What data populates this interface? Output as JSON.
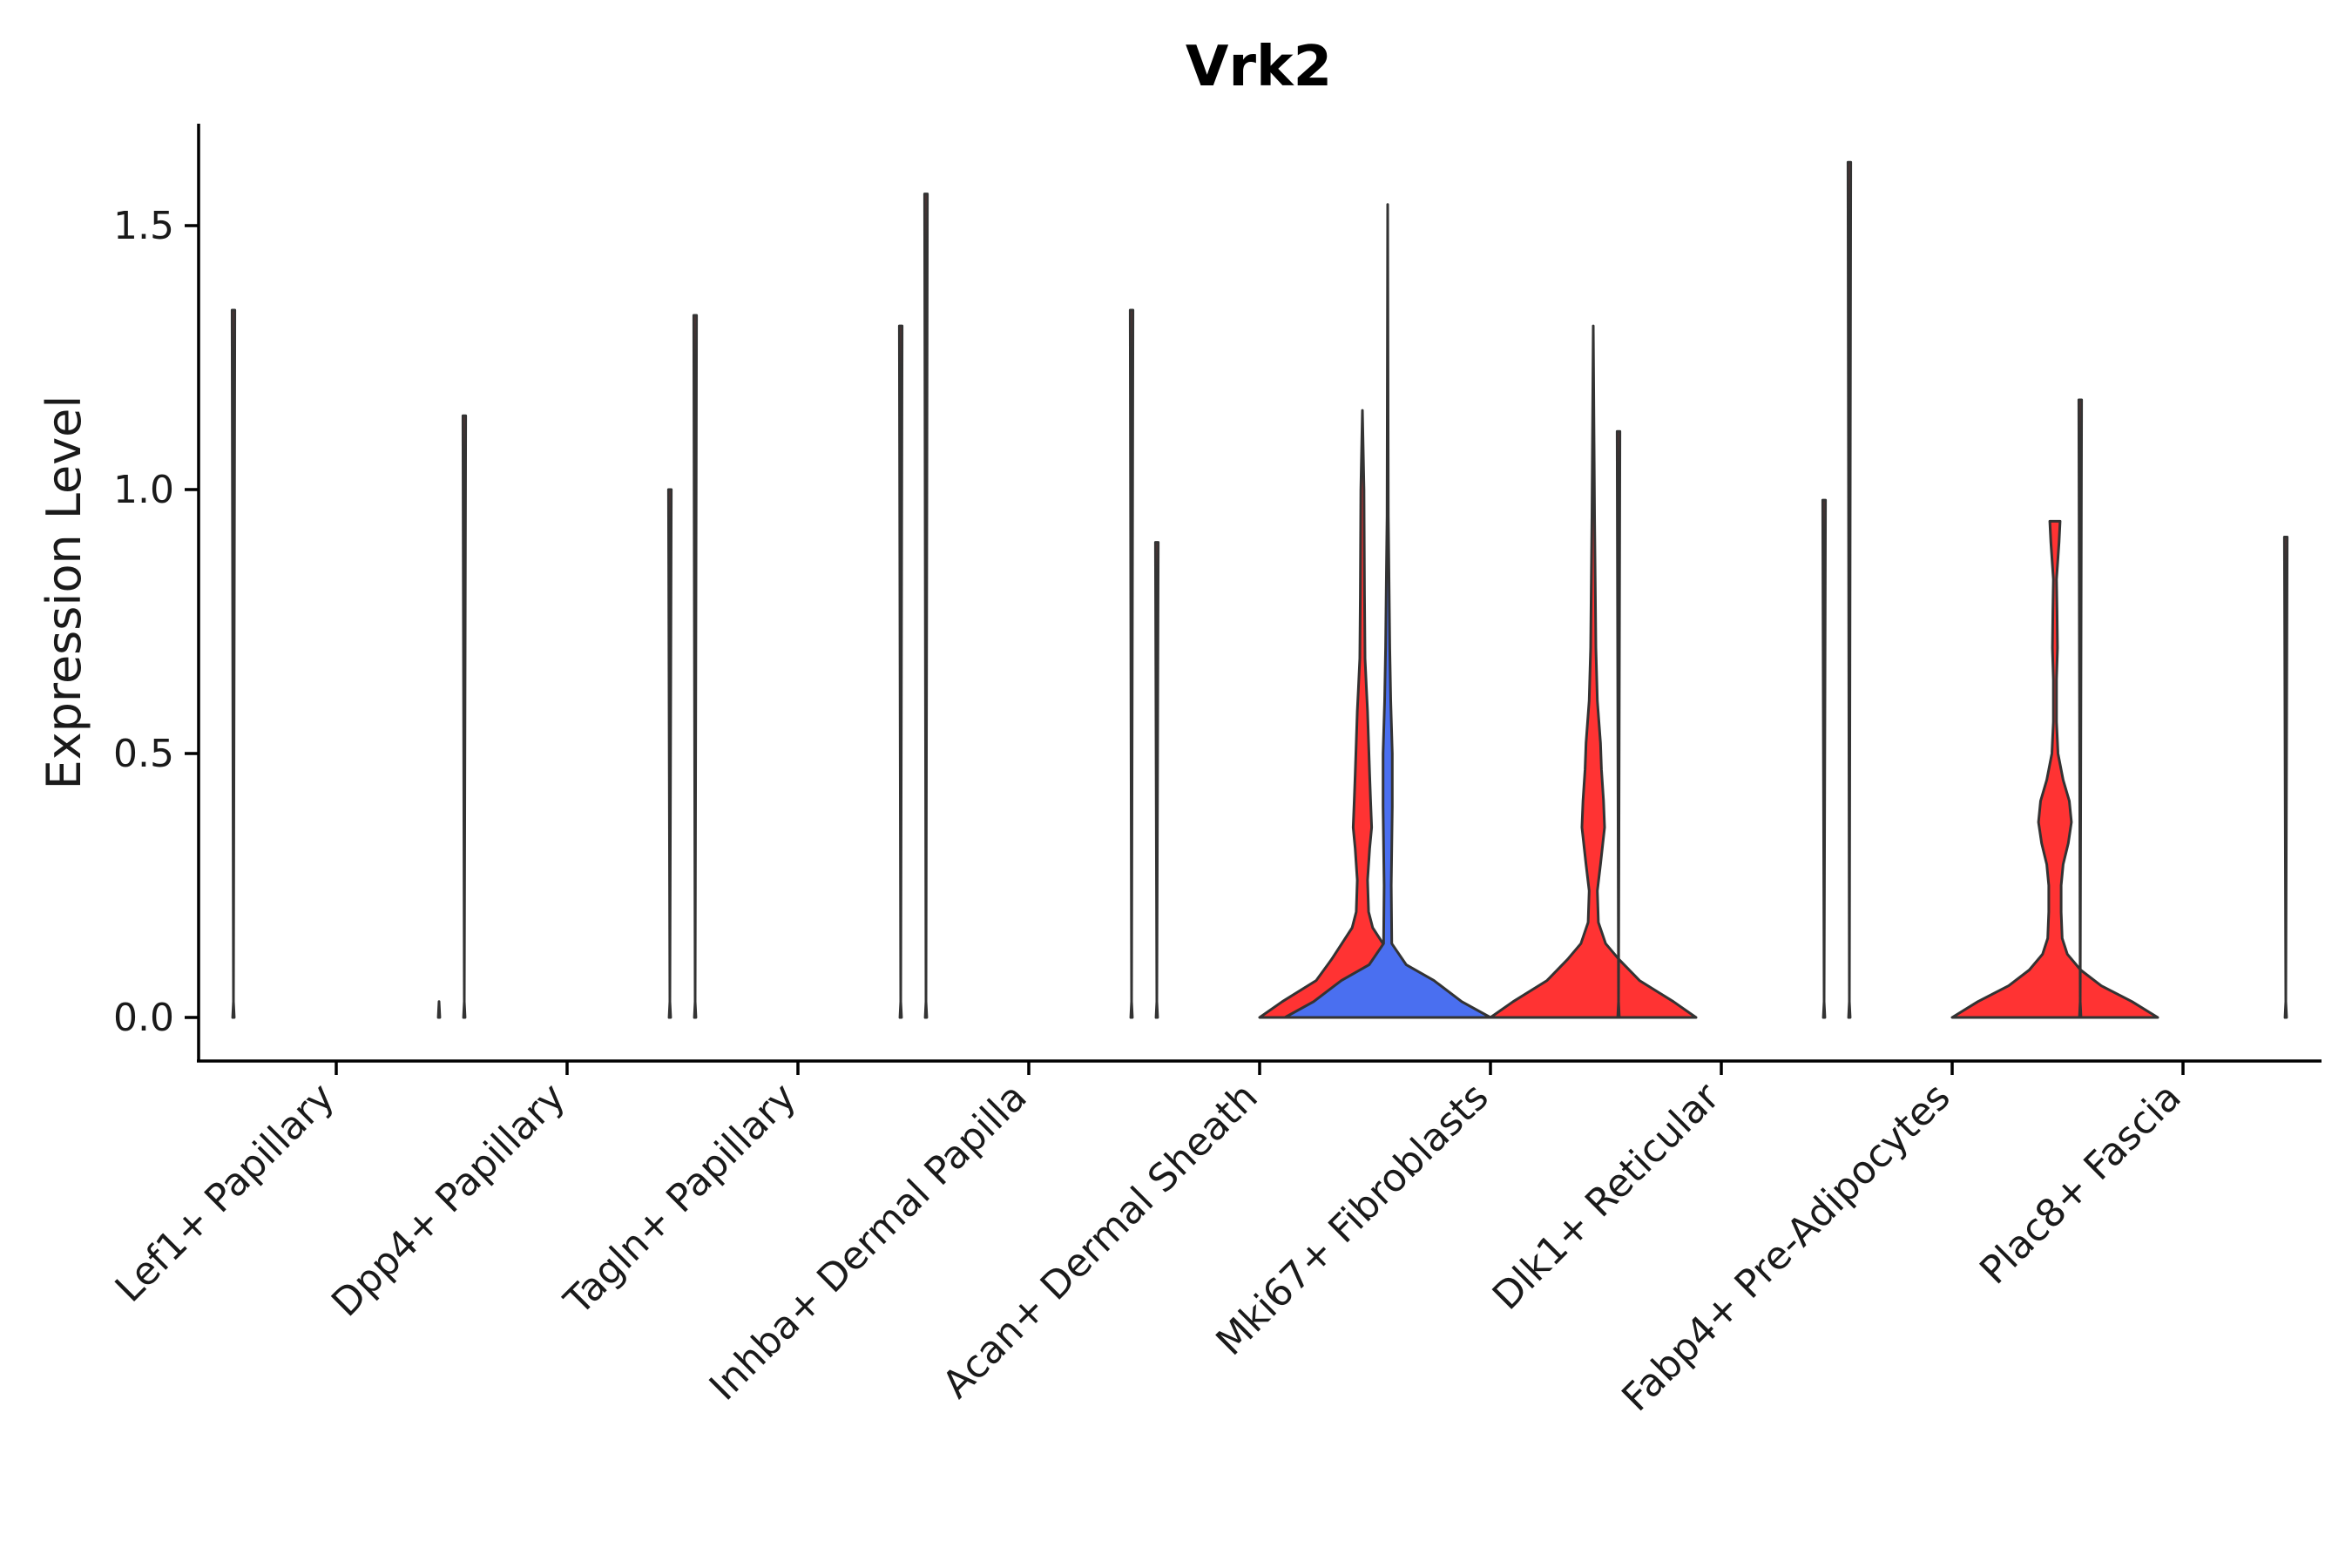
{
  "chart_data": {
    "type": "violin",
    "title": "Vrk2",
    "xlabel": "",
    "ylabel": "Expression Level",
    "ylim": [
      -0.08,
      1.7
    ],
    "y_ticks": [
      {
        "value": 0.0,
        "label": "0.0"
      },
      {
        "value": 0.5,
        "label": "0.5"
      },
      {
        "value": 1.0,
        "label": "1.0"
      },
      {
        "value": 1.5,
        "label": "1.5"
      }
    ],
    "grid": false,
    "legend": "none",
    "colors": {
      "red": "#ff3333",
      "blue": "#4a6ff0",
      "outline": "#333333"
    },
    "categories": [
      "Lef1+ Papillary",
      "Dpp4+ Papillary",
      "Tagln+ Papillary",
      "Inhba+ Dermal Papilla",
      "Acan+ Dermal Sheath",
      "Mki67+ Fibroblasts",
      "Dlk1+ Reticular",
      "Fabp4+ Pre-Adipocytes",
      "Plac8+ Fascia"
    ],
    "groups": [
      {
        "category": "Lef1+ Papillary",
        "split": "left",
        "max": 1.34,
        "color": "#ff3333",
        "density": [
          [
            0,
            0.008
          ],
          [
            0.03,
            0
          ]
        ]
      },
      {
        "category": "Lef1+ Papillary",
        "split": "right",
        "max": 0,
        "color": "#ff3333",
        "density": [
          [
            0,
            0.008
          ],
          [
            0.03,
            0
          ]
        ]
      },
      {
        "category": "Dpp4+ Papillary",
        "split": "left",
        "max": 1.14,
        "color": "#ff3333",
        "density": [
          [
            0,
            0.008
          ],
          [
            0.03,
            0
          ]
        ]
      },
      {
        "category": "Dpp4+ Papillary",
        "split": "right",
        "max": 1.0,
        "color": "#ff3333",
        "density": [
          [
            0,
            0.008
          ],
          [
            0.03,
            0
          ]
        ]
      },
      {
        "category": "Tagln+ Papillary",
        "split": "left",
        "max": 1.33,
        "color": "#ff3333",
        "density": [
          [
            0,
            0.008
          ],
          [
            0.03,
            0
          ]
        ]
      },
      {
        "category": "Tagln+ Papillary",
        "split": "right",
        "max": 1.31,
        "color": "#ff3333",
        "density": [
          [
            0,
            0.008
          ],
          [
            0.03,
            0
          ]
        ]
      },
      {
        "category": "Inhba+ Dermal Papilla",
        "split": "left",
        "max": 1.56,
        "color": "#ff3333",
        "density": [
          [
            0,
            0.008
          ],
          [
            0.03,
            0
          ]
        ]
      },
      {
        "category": "Inhba+ Dermal Papilla",
        "split": "right",
        "max": 1.34,
        "color": "#ff3333",
        "density": [
          [
            0,
            0.008
          ],
          [
            0.03,
            0
          ]
        ]
      },
      {
        "category": "Acan+ Dermal Sheath",
        "split": "left",
        "max": 0.9,
        "color": "#ff3333",
        "density": [
          [
            0,
            0.008
          ],
          [
            0.03,
            0
          ]
        ]
      },
      {
        "category": "Acan+ Dermal Sheath",
        "split": "right",
        "max": 1.15,
        "color": "#ff3333",
        "density": [
          [
            0,
            1
          ],
          [
            0.03,
            0.78
          ],
          [
            0.07,
            0.45
          ],
          [
            0.11,
            0.3
          ],
          [
            0.14,
            0.2
          ],
          [
            0.17,
            0.1
          ],
          [
            0.2,
            0.06
          ],
          [
            0.26,
            0.05
          ],
          [
            0.32,
            0.07
          ],
          [
            0.36,
            0.09
          ],
          [
            0.41,
            0.08
          ],
          [
            0.46,
            0.07
          ],
          [
            0.52,
            0.06
          ],
          [
            0.58,
            0.05
          ],
          [
            0.62,
            0.04
          ],
          [
            0.68,
            0.025
          ],
          [
            0.8,
            0.02
          ],
          [
            1.0,
            0.015
          ],
          [
            1.15,
            0
          ]
        ]
      },
      {
        "category": "Mki67+ Fibroblasts",
        "split": "left",
        "max": 1.54,
        "color": "#4a6ff0",
        "density": [
          [
            0,
            1
          ],
          [
            0.03,
            0.72
          ],
          [
            0.07,
            0.45
          ],
          [
            0.1,
            0.18
          ],
          [
            0.14,
            0.04
          ],
          [
            0.25,
            0.035
          ],
          [
            0.4,
            0.045
          ],
          [
            0.5,
            0.045
          ],
          [
            0.6,
            0.03
          ],
          [
            0.7,
            0.02
          ],
          [
            0.85,
            0.012
          ],
          [
            0.95,
            0.006
          ],
          [
            1.54,
            0
          ]
        ]
      },
      {
        "category": "Mki67+ Fibroblasts",
        "split": "right",
        "max": 1.31,
        "color": "#ff3333",
        "density": [
          [
            0,
            1
          ],
          [
            0.03,
            0.78
          ],
          [
            0.07,
            0.45
          ],
          [
            0.11,
            0.25
          ],
          [
            0.14,
            0.12
          ],
          [
            0.18,
            0.05
          ],
          [
            0.24,
            0.04
          ],
          [
            0.29,
            0.07
          ],
          [
            0.36,
            0.11
          ],
          [
            0.41,
            0.1
          ],
          [
            0.47,
            0.08
          ],
          [
            0.52,
            0.07
          ],
          [
            0.6,
            0.04
          ],
          [
            0.7,
            0.025
          ],
          [
            0.8,
            0.02
          ],
          [
            0.95,
            0.013
          ],
          [
            1.31,
            0
          ]
        ]
      },
      {
        "category": "Dlk1+ Reticular",
        "split": "left",
        "max": 1.11,
        "color": "#ff3333",
        "density": [
          [
            0,
            0.008
          ],
          [
            0.03,
            0
          ]
        ]
      },
      {
        "category": "Dlk1+ Reticular",
        "split": "right",
        "max": 0.98,
        "color": "#ff3333",
        "density": [
          [
            0,
            0.008
          ],
          [
            0.03,
            0
          ]
        ]
      },
      {
        "category": "Fabp4+ Pre-Adipocytes",
        "split": "left",
        "max": 1.62,
        "color": "#ff3333",
        "density": [
          [
            0,
            0.008
          ],
          [
            0.03,
            0
          ]
        ]
      },
      {
        "category": "Fabp4+ Pre-Adipocytes",
        "split": "right",
        "max": 0.94,
        "color": "#ff3333",
        "density": [
          [
            0,
            1
          ],
          [
            0.03,
            0.75
          ],
          [
            0.06,
            0.45
          ],
          [
            0.09,
            0.25
          ],
          [
            0.12,
            0.12
          ],
          [
            0.15,
            0.07
          ],
          [
            0.2,
            0.06
          ],
          [
            0.25,
            0.06
          ],
          [
            0.29,
            0.08
          ],
          [
            0.33,
            0.13
          ],
          [
            0.37,
            0.16
          ],
          [
            0.41,
            0.14
          ],
          [
            0.45,
            0.08
          ],
          [
            0.5,
            0.03
          ],
          [
            0.56,
            0.015
          ],
          [
            0.64,
            0.015
          ],
          [
            0.7,
            0.025
          ],
          [
            0.77,
            0.02
          ],
          [
            0.83,
            0.015
          ],
          [
            0.9,
            0.04
          ],
          [
            0.94,
            0.05
          ]
        ]
      },
      {
        "category": "Plac8+ Fascia",
        "split": "left",
        "max": 1.17,
        "color": "#ff3333",
        "density": [
          [
            0,
            0.008
          ],
          [
            0.03,
            0
          ]
        ]
      },
      {
        "category": "Plac8+ Fascia",
        "split": "right",
        "max": 0.91,
        "color": "#ff3333",
        "density": [
          [
            0,
            0.008
          ],
          [
            0.03,
            0
          ]
        ]
      }
    ]
  }
}
